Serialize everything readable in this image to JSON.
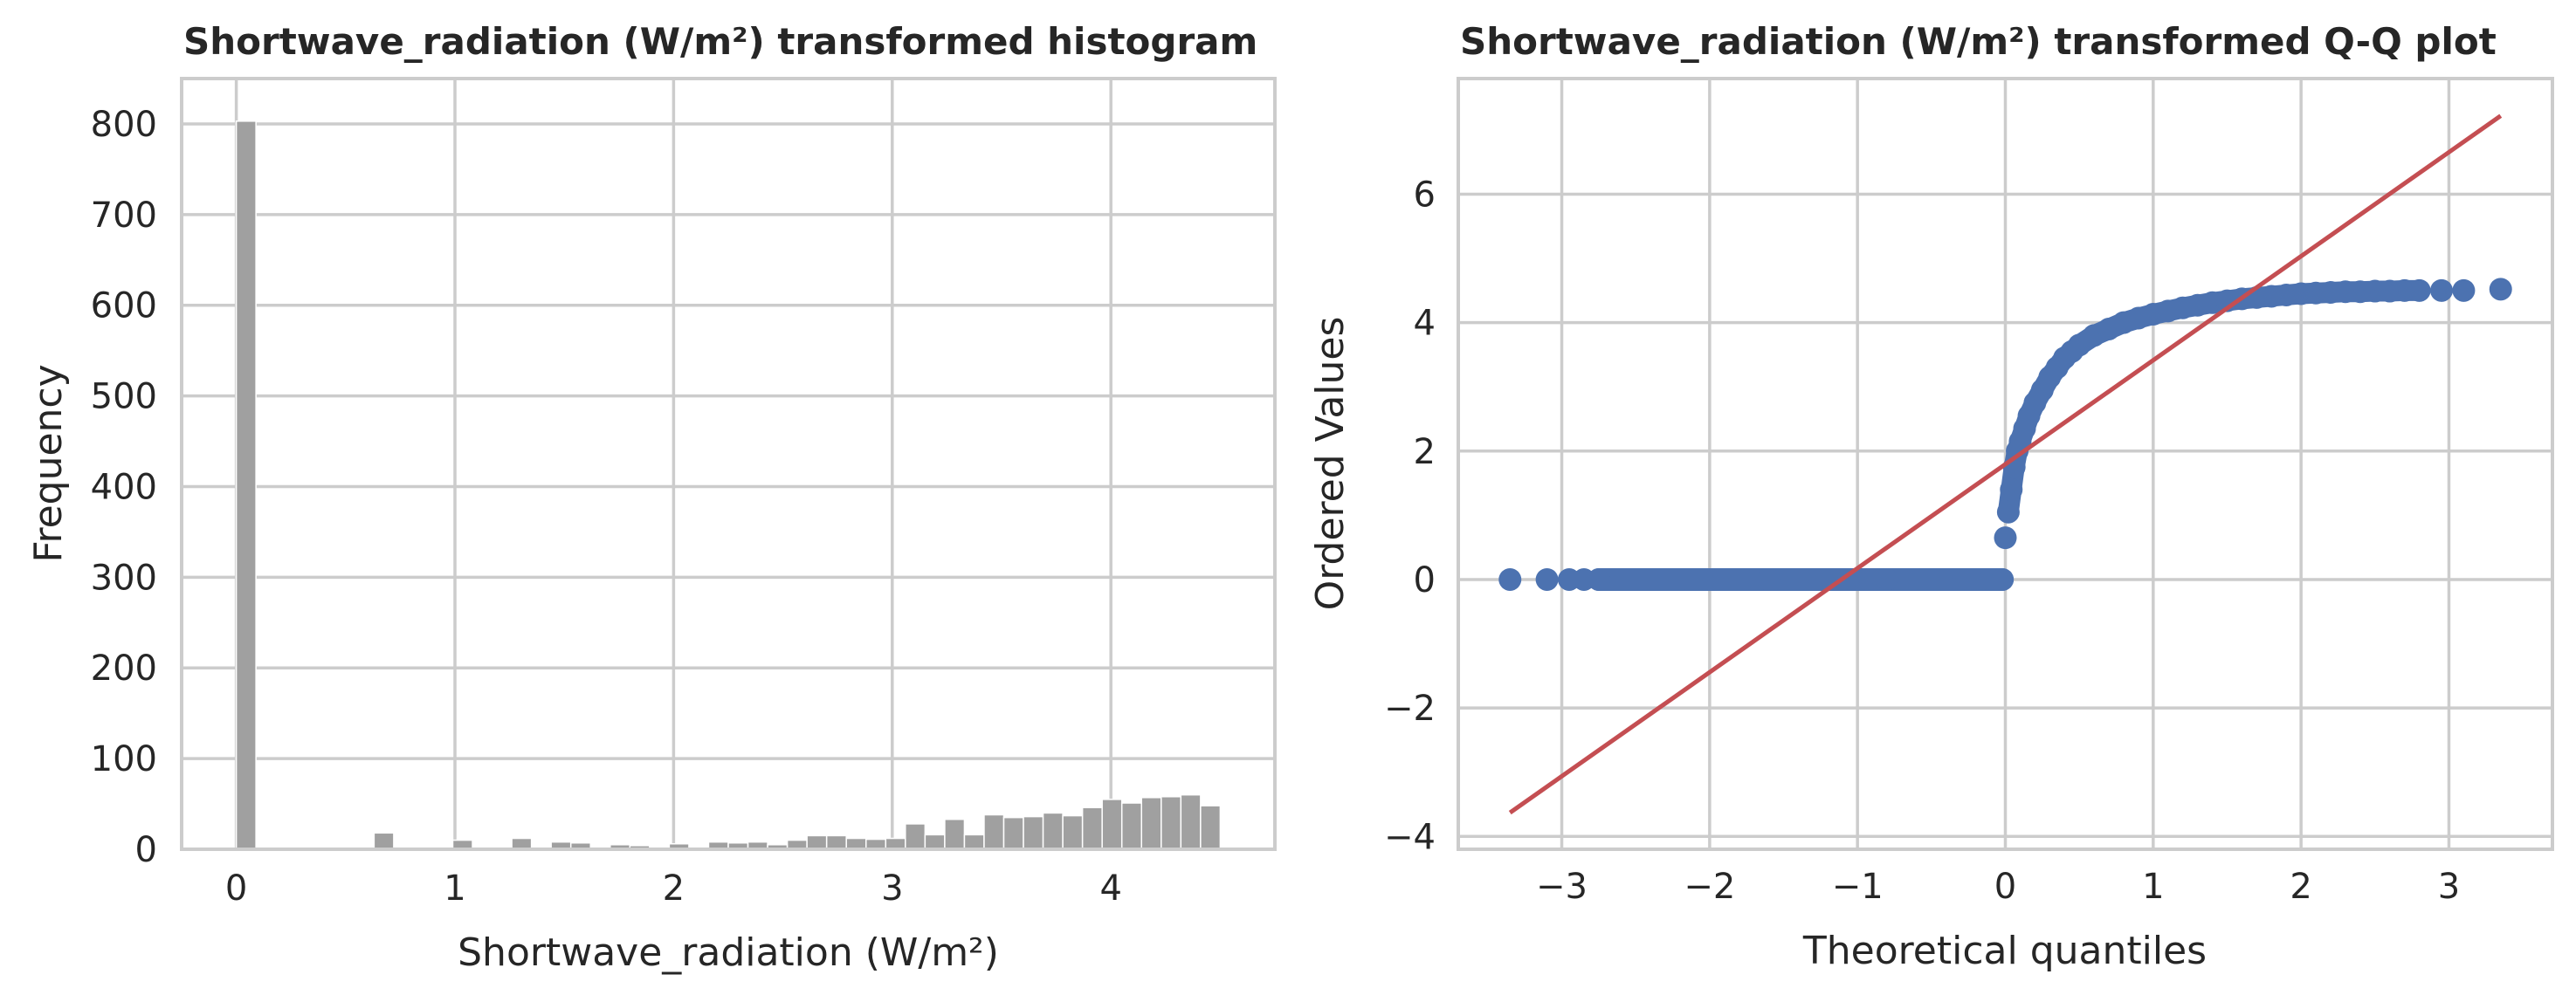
{
  "chart_data": [
    {
      "type": "bar",
      "title": "Shortwave_radiation (W/m²) transformed histogram",
      "xlabel": "Shortwave_radiation (W/m²)",
      "ylabel": "Frequency",
      "xlim": [
        -0.25,
        4.75
      ],
      "ylim": [
        0,
        850
      ],
      "xticks": [
        0,
        1,
        2,
        3,
        4
      ],
      "yticks": [
        0,
        100,
        200,
        300,
        400,
        500,
        600,
        700,
        800
      ],
      "grid": true,
      "bar_color": "#a0a0a0",
      "bin_width": 0.09,
      "bin_starts": [
        0.0,
        0.09,
        0.18,
        0.27,
        0.36,
        0.45,
        0.54,
        0.63,
        0.72,
        0.81,
        0.9,
        0.99,
        1.08,
        1.17,
        1.26,
        1.35,
        1.44,
        1.53,
        1.62,
        1.71,
        1.8,
        1.89,
        1.98,
        2.07,
        2.16,
        2.25,
        2.34,
        2.43,
        2.52,
        2.61,
        2.7,
        2.79,
        2.88,
        2.97,
        3.06,
        3.15,
        3.24,
        3.33,
        3.42,
        3.51,
        3.6,
        3.69,
        3.78,
        3.87,
        3.96,
        4.05,
        4.14,
        4.23,
        4.32,
        4.41
      ],
      "values": [
        803,
        0,
        0,
        0,
        0,
        0,
        0,
        18,
        0,
        0,
        0,
        10,
        0,
        0,
        12,
        0,
        8,
        7,
        0,
        5,
        4,
        0,
        6,
        0,
        8,
        7,
        8,
        5,
        10,
        15,
        15,
        12,
        11,
        12,
        28,
        16,
        33,
        16,
        38,
        35,
        36,
        40,
        37,
        46,
        55,
        51,
        57,
        58,
        60,
        48
      ]
    },
    {
      "type": "scatter",
      "title": "Shortwave_radiation (W/m²) transformed Q-Q plot",
      "xlabel": "Theoretical quantiles",
      "ylabel": "Ordered Values",
      "xlim": [
        -3.7,
        3.7
      ],
      "ylim": [
        -4.2,
        7.8
      ],
      "xticks": [
        -3,
        -2,
        -1,
        0,
        1,
        2,
        3
      ],
      "yticks": [
        -4,
        -2,
        0,
        2,
        4,
        6
      ],
      "grid": true,
      "point_color": "#4c72b0",
      "line_color": "#c44e52",
      "fit_line": {
        "x": [
          -3.35,
          3.35
        ],
        "y": [
          -3.63,
          7.22
        ]
      },
      "points": {
        "x": [
          -3.35,
          -3.1,
          -2.95,
          -2.85,
          -2.75,
          -2.6,
          -2.4,
          -2.2,
          -2.0,
          -1.8,
          -1.6,
          -1.4,
          -1.2,
          -1.0,
          -0.8,
          -0.6,
          -0.4,
          -0.2,
          -0.1,
          -0.02,
          0.0,
          0.02,
          0.04,
          0.06,
          0.08,
          0.1,
          0.13,
          0.16,
          0.2,
          0.25,
          0.3,
          0.35,
          0.4,
          0.45,
          0.5,
          0.6,
          0.7,
          0.8,
          0.9,
          1.0,
          1.1,
          1.2,
          1.3,
          1.4,
          1.5,
          1.6,
          1.7,
          1.8,
          1.9,
          2.0,
          2.1,
          2.2,
          2.3,
          2.4,
          2.5,
          2.6,
          2.7,
          2.8,
          2.95,
          3.1,
          3.35
        ],
        "y": [
          0.0,
          0.0,
          0.0,
          0.0,
          0.0,
          0.0,
          0.0,
          0.0,
          0.0,
          0.0,
          0.0,
          0.0,
          0.0,
          0.0,
          0.0,
          0.0,
          0.0,
          0.0,
          0.0,
          0.0,
          0.65,
          1.05,
          1.4,
          1.75,
          2.0,
          2.15,
          2.35,
          2.55,
          2.75,
          2.95,
          3.15,
          3.3,
          3.45,
          3.55,
          3.65,
          3.8,
          3.9,
          4.0,
          4.07,
          4.13,
          4.18,
          4.23,
          4.27,
          4.31,
          4.34,
          4.37,
          4.39,
          4.41,
          4.43,
          4.45,
          4.46,
          4.47,
          4.48,
          4.48,
          4.49,
          4.49,
          4.5,
          4.5,
          4.5,
          4.5,
          4.52
        ]
      }
    }
  ]
}
